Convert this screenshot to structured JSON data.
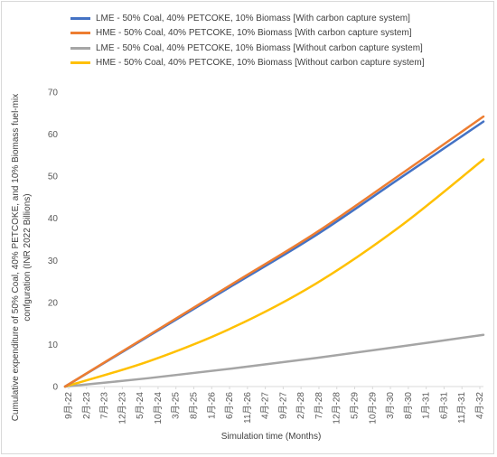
{
  "chart_data": {
    "type": "line",
    "title": "",
    "xlabel": "Simulation time (Months)",
    "ylabel_lines": [
      "Cumulative expenditure of 50% Coal, 40% PETCOKE, and 10% Biomass fuel-mix",
      "confguration (INR 2022 Billions)"
    ],
    "ylim": [
      0,
      70
    ],
    "y_ticks": [
      0,
      10,
      20,
      30,
      40,
      50,
      60,
      70
    ],
    "x_tick_labels": [
      "9月-22",
      "2月-23",
      "7月-23",
      "12月-23",
      "5月-24",
      "10月-24",
      "3月-25",
      "8月-25",
      "1月-26",
      "6月-26",
      "11月-26",
      "4月-27",
      "9月-27",
      "2月-28",
      "7月-28",
      "12月-28",
      "5月-29",
      "10月-29",
      "3月-30",
      "8月-30",
      "1月-31",
      "6月-31",
      "11月-31",
      "4月-32"
    ],
    "x_months_from_start": [
      0,
      125
    ],
    "legend_position": "top-left",
    "grid": false,
    "series": [
      {
        "name": "LME - 50% Coal, 40% PETCOKE, 10% Biomass [With carbon capture system]",
        "color": "#4472C4",
        "x": [
          0,
          25,
          50,
          75,
          100,
          125
        ],
        "values": [
          0,
          12.0,
          24.0,
          36.0,
          49.5,
          63.0
        ]
      },
      {
        "name": "HME - 50% Coal, 40% PETCOKE, 10% Biomass [With carbon capture system]",
        "color": "#ED7D31",
        "x": [
          0,
          25,
          50,
          75,
          100,
          125
        ],
        "values": [
          0,
          12.2,
          24.4,
          36.6,
          50.3,
          64.2
        ]
      },
      {
        "name": "LME - 50% Coal, 40% PETCOKE, 10% Biomass [Without carbon capture system]",
        "color": "#A5A5A5",
        "x": [
          0,
          25,
          50,
          75,
          100,
          125
        ],
        "values": [
          0,
          2.0,
          4.3,
          6.8,
          9.5,
          12.3
        ]
      },
      {
        "name": "HME - 50% Coal, 40% PETCOKE, 10% Biomass [Without carbon capture system]",
        "color": "#FFC000",
        "x": [
          0,
          25,
          50,
          75,
          100,
          125
        ],
        "values": [
          0,
          6.0,
          14.0,
          24.5,
          38.0,
          54.0
        ]
      }
    ]
  }
}
